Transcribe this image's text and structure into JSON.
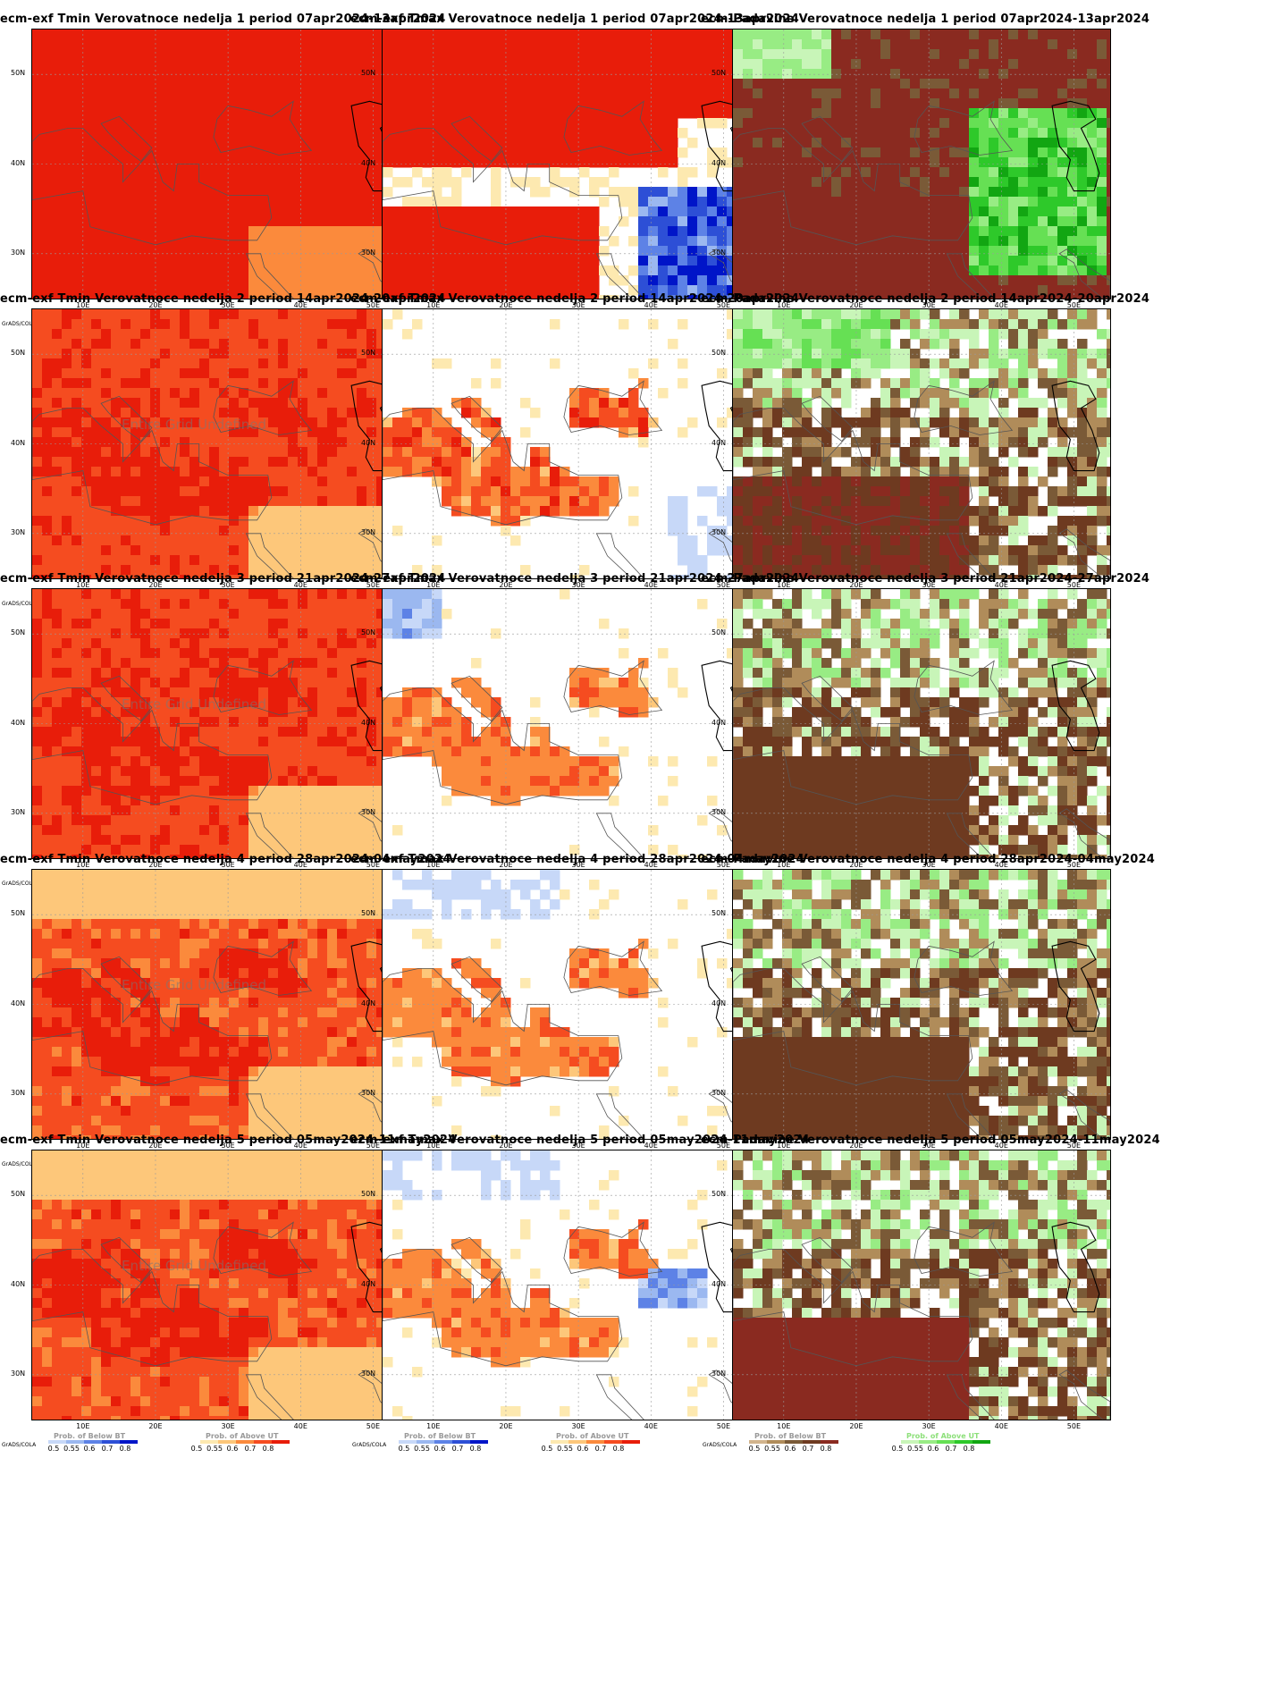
{
  "axes": {
    "lat_labels": [
      "50N",
      "40N",
      "30N"
    ],
    "lon_labels": [
      "10E",
      "20E",
      "30E",
      "40E",
      "50E"
    ]
  },
  "legend": {
    "grads": "GrADS/COLA",
    "ticks": [
      "0.5",
      "0.55",
      "0.6",
      "0.7",
      "0.8"
    ],
    "below_title": "Prob. of Below BT",
    "above_title": "Prob. of Above UT"
  },
  "colors": {
    "temp_above": [
      "#fde9b0",
      "#fdc77a",
      "#fb8a3c",
      "#f54c20",
      "#e81d0a"
    ],
    "temp_below": [
      "#c7d8f8",
      "#9bb8f0",
      "#5d82e6",
      "#2d4fd6",
      "#0015c8"
    ],
    "prec_below": [
      "#d2b48c",
      "#b08c5a",
      "#7a5a37",
      "#6e3a20",
      "#8a2a20"
    ],
    "prec_above": [
      "#c8f5b8",
      "#98ec84",
      "#66e054",
      "#2ec92a",
      "#12a612"
    ]
  },
  "panels": [
    {
      "title": "ecm-exf Tmin Verovatnoce nedelja 1 period 07apr2024-13apr2024",
      "variable": "Tmin",
      "week": 1,
      "annotation": ""
    },
    {
      "title": "ecm-exf Tmax Verovatnoce nedelja 1 period 07apr2024-13apr2024",
      "variable": "Tmax",
      "week": 1,
      "annotation": ""
    },
    {
      "title": "ecm-Padavine Verovatnoce nedelja 1 period 07apr2024-13apr2024",
      "variable": "Padavine",
      "week": 1,
      "annotation": ""
    },
    {
      "title": "ecm-exf Tmin Verovatnoce nedelja 2 period 14apr2024-20apr2024",
      "variable": "Tmin",
      "week": 2,
      "annotation": "Entire Grid Undefined"
    },
    {
      "title": "ecm-exf Tmax Verovatnoce nedelja 2 period 14apr2024-20apr2024",
      "variable": "Tmax",
      "week": 2,
      "annotation": ""
    },
    {
      "title": "ecm-Padavine Verovatnoce nedelja 2 period 14apr2024-20apr2024",
      "variable": "Padavine",
      "week": 2,
      "annotation": ""
    },
    {
      "title": "ecm-exf Tmin Verovatnoce nedelja 3 period 21apr2024-27apr2024",
      "variable": "Tmin",
      "week": 3,
      "annotation": "Entire Grid Undefined"
    },
    {
      "title": "ecm-exf Tmax Verovatnoce nedelja 3 period 21apr2024-27apr2024",
      "variable": "Tmax",
      "week": 3,
      "annotation": ""
    },
    {
      "title": "ecm-Padavine Verovatnoce nedelja 3 period 21apr2024-27apr2024",
      "variable": "Padavine",
      "week": 3,
      "annotation": ""
    },
    {
      "title": "ecm-exf Tmin Verovatnoce nedelja 4 period 28apr2024-04may2024",
      "variable": "Tmin",
      "week": 4,
      "annotation": "Entire Grid Undefined"
    },
    {
      "title": "ecm-exf Tmax Verovatnoce nedelja 4 period 28apr2024-04may2024",
      "variable": "Tmax",
      "week": 4,
      "annotation": ""
    },
    {
      "title": "ecm-Padavine Verovatnoce nedelja 4 period 28apr2024-04may2024",
      "variable": "Padavine",
      "week": 4,
      "annotation": ""
    },
    {
      "title": "ecm-exf Tmin Verovatnoce nedelja 5 period 05may2024-11may2024",
      "variable": "Tmin",
      "week": 5,
      "annotation": "Entire Grid Undefined"
    },
    {
      "title": "ecm-exf Tmax Verovatnoce nedelja 5 period 05may2024-11may2024",
      "variable": "Tmax",
      "week": 5,
      "annotation": ""
    },
    {
      "title": "ecm-Padavine Verovatnoce nedelja 5 period 05may2024-11may2024",
      "variable": "Padavine",
      "week": 5,
      "annotation": ""
    }
  ]
}
